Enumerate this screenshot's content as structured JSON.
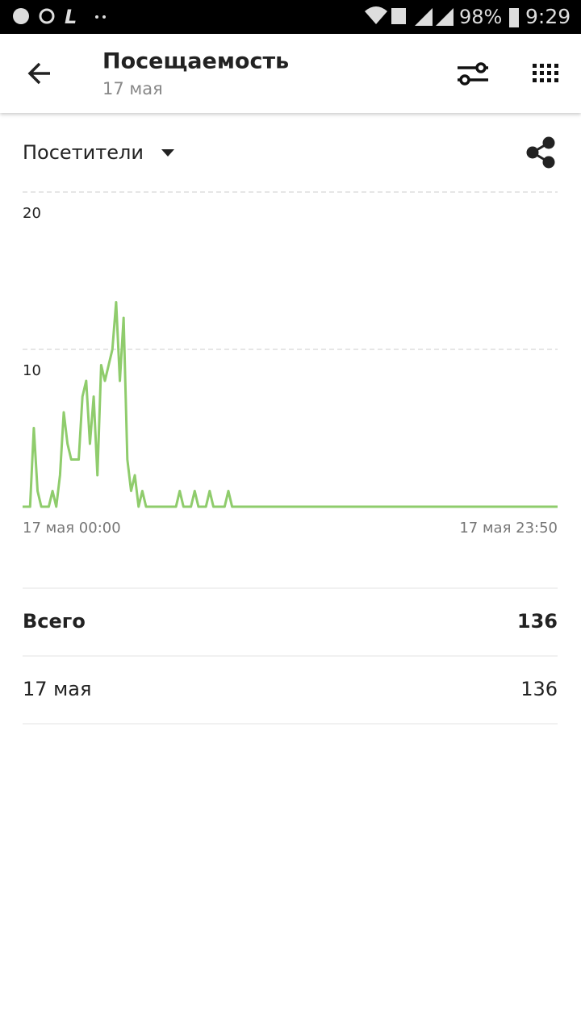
{
  "status_bar": {
    "battery": "98%",
    "time": "9:29"
  },
  "header": {
    "title": "Посещаемость",
    "subtitle": "17 мая"
  },
  "metric_selector": "Посетители",
  "chart_data": {
    "type": "line",
    "categories": [
      "17 мая 00:00",
      null,
      null,
      null,
      null,
      null,
      null,
      null,
      null,
      null,
      null,
      null,
      null,
      null,
      null,
      null,
      null,
      null,
      null,
      null,
      null,
      null,
      null,
      null,
      null,
      null,
      null,
      null,
      null,
      null,
      null,
      null,
      null,
      null,
      null,
      null,
      null,
      null,
      null,
      null,
      null,
      null,
      null,
      null,
      null,
      null,
      null,
      null,
      null,
      null,
      null,
      null,
      null,
      null,
      null,
      null,
      null,
      null,
      null,
      null,
      null,
      null,
      null,
      null,
      null,
      null,
      null,
      null,
      null,
      null,
      null,
      null,
      null,
      null,
      null,
      null,
      null,
      null,
      null,
      null,
      null,
      null,
      null,
      null,
      null,
      null,
      null,
      null,
      null,
      null,
      null,
      null,
      null,
      null,
      null,
      null,
      null,
      null,
      null,
      null,
      null,
      null,
      null,
      null,
      null,
      null,
      null,
      null,
      null,
      null,
      null,
      null,
      null,
      null,
      null,
      null,
      null,
      null,
      null,
      null,
      null,
      null,
      null,
      null,
      null,
      null,
      null,
      null,
      null,
      null,
      null,
      null,
      null,
      null,
      null,
      null,
      null,
      null,
      null,
      null,
      null,
      null,
      null,
      "17 мая 23:50"
    ],
    "values": [
      0,
      0,
      0,
      5,
      1,
      0,
      0,
      0,
      1,
      0,
      2,
      6,
      4,
      3,
      3,
      3,
      7,
      8,
      4,
      7,
      2,
      9,
      8,
      9,
      10,
      13,
      8,
      12,
      3,
      1,
      2,
      0,
      1,
      0,
      0,
      0,
      0,
      0,
      0,
      0,
      0,
      0,
      1,
      0,
      0,
      0,
      1,
      0,
      0,
      0,
      1,
      0,
      0,
      0,
      0,
      1,
      0,
      0,
      0,
      0,
      0,
      0,
      0,
      0,
      0,
      0,
      0,
      0,
      0,
      0,
      0,
      0,
      0,
      0,
      0,
      0,
      0,
      0,
      0,
      0,
      0,
      0,
      0,
      0,
      0,
      0,
      0,
      0,
      0,
      0,
      0,
      0,
      0,
      0,
      0,
      0,
      0,
      0,
      0,
      0,
      0,
      0,
      0,
      0,
      0,
      0,
      0,
      0,
      0,
      0,
      0,
      0,
      0,
      0,
      0,
      0,
      0,
      0,
      0,
      0,
      0,
      0,
      0,
      0,
      0,
      0,
      0,
      0,
      0,
      0,
      0,
      0,
      0,
      0,
      0,
      0,
      0,
      0,
      0,
      0,
      0,
      0,
      0,
      0
    ],
    "color": "#8fcc6c",
    "ylim": [
      0,
      20
    ],
    "yticks": [
      10,
      20
    ],
    "grid": true
  },
  "summary": {
    "rows": [
      [
        "Всего",
        136
      ],
      [
        "17 мая",
        136
      ]
    ]
  }
}
